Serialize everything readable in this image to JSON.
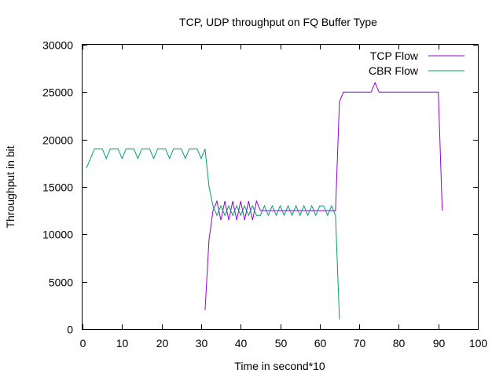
{
  "chart_data": {
    "type": "line",
    "title": "TCP, UDP throughput on FQ Buffer Type",
    "xlabel": "Time in second*10",
    "ylabel": "Throughput in bit",
    "xlim": [
      0,
      100
    ],
    "ylim": [
      0,
      30000
    ],
    "xticks": [
      "0",
      "10",
      "20",
      "30",
      "40",
      "50",
      "60",
      "70",
      "80",
      "90",
      "100"
    ],
    "yticks": [
      "0",
      "5000",
      "10000",
      "15000",
      "20000",
      "25000",
      "30000"
    ],
    "grid": false,
    "legend_position": "top-right",
    "series": [
      {
        "name": "TCP Flow",
        "color": "#9400d3",
        "x": [
          31,
          32,
          33,
          34,
          35,
          36,
          37,
          38,
          39,
          40,
          41,
          42,
          43,
          44,
          45,
          46,
          47,
          48,
          49,
          50,
          51,
          52,
          53,
          54,
          55,
          56,
          57,
          58,
          59,
          60,
          61,
          62,
          63,
          64,
          65,
          66,
          67,
          68,
          69,
          70,
          71,
          72,
          73,
          74,
          75,
          76,
          77,
          78,
          79,
          80,
          81,
          82,
          83,
          84,
          85,
          86,
          87,
          88,
          89,
          90,
          91
        ],
        "y": [
          2000,
          9500,
          12500,
          13500,
          11500,
          13500,
          11500,
          13500,
          11500,
          13500,
          11500,
          13500,
          11500,
          13500,
          12500,
          12500,
          12500,
          12500,
          12500,
          12500,
          12500,
          12500,
          12500,
          12500,
          12500,
          12500,
          12500,
          12500,
          12500,
          12500,
          12500,
          12500,
          12500,
          12500,
          24000,
          25000,
          25000,
          25000,
          25000,
          25000,
          25000,
          25000,
          25000,
          26000,
          25000,
          25000,
          25000,
          25000,
          25000,
          25000,
          25000,
          25000,
          25000,
          25000,
          25000,
          25000,
          25000,
          25000,
          25000,
          25000,
          12500
        ]
      },
      {
        "name": "CBR Flow",
        "color": "#009e73",
        "x": [
          1,
          2,
          3,
          4,
          5,
          6,
          7,
          8,
          9,
          10,
          11,
          12,
          13,
          14,
          15,
          16,
          17,
          18,
          19,
          20,
          21,
          22,
          23,
          24,
          25,
          26,
          27,
          28,
          29,
          30,
          31,
          32,
          33,
          34,
          35,
          36,
          37,
          38,
          39,
          40,
          41,
          42,
          43,
          44,
          45,
          46,
          47,
          48,
          49,
          50,
          51,
          52,
          53,
          54,
          55,
          56,
          57,
          58,
          59,
          60,
          61,
          62,
          63,
          64,
          65
        ],
        "y": [
          17000,
          18000,
          19000,
          19000,
          19000,
          18000,
          19000,
          19000,
          19000,
          18000,
          19000,
          19000,
          19000,
          18000,
          19000,
          19000,
          19000,
          18000,
          19000,
          19000,
          19000,
          18000,
          19000,
          19000,
          19000,
          18000,
          19000,
          19000,
          19000,
          18000,
          19000,
          15000,
          13000,
          12000,
          13000,
          12000,
          13000,
          12000,
          13000,
          12000,
          13000,
          12000,
          13000,
          12000,
          12000,
          13000,
          12000,
          13000,
          12000,
          13000,
          12000,
          13000,
          12000,
          13000,
          12000,
          13000,
          12000,
          13000,
          12000,
          13000,
          13000,
          12000,
          13000,
          12000,
          1000
        ]
      }
    ]
  }
}
